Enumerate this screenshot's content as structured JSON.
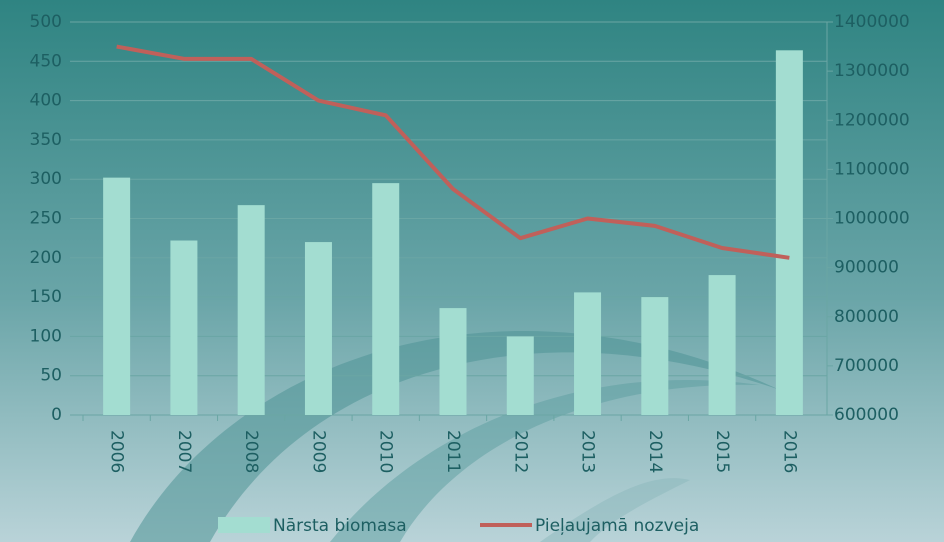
{
  "chart_data": {
    "type": "bar_line",
    "categories": [
      "2006",
      "2007",
      "2008",
      "2009",
      "2010",
      "2011",
      "2012",
      "2013",
      "2014",
      "2015",
      "2016"
    ],
    "series": [
      {
        "name": "Nārsta biomasa",
        "color": "#a3ddd1",
        "type": "bar",
        "values": [
          302,
          222,
          267,
          220,
          295,
          136,
          100,
          156,
          150,
          178,
          464
        ]
      },
      {
        "name": "Pieļaujamā nozveja",
        "color": "#c0605a",
        "type": "line",
        "axis": "y2",
        "values": [
          1350000,
          1325000,
          1325000,
          1240000,
          1210000,
          1060000,
          960000,
          1000000,
          985000,
          940000,
          920000
        ]
      }
    ],
    "ylim": [
      0,
      500
    ],
    "yticks": [
      0,
      50,
      100,
      150,
      200,
      250,
      300,
      350,
      400,
      450,
      500
    ],
    "y2lim": [
      600000,
      1400000
    ],
    "y2ticks": [
      600000,
      700000,
      800000,
      900000,
      1000000,
      1100000,
      1200000,
      1300000,
      1400000
    ],
    "grid": true,
    "legend": "bottom"
  }
}
